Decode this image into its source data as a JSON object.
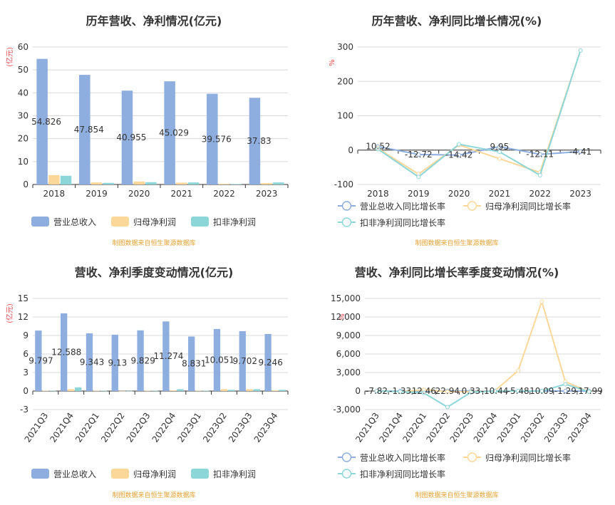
{
  "colors": {
    "revenue": "#8eaedf",
    "parent_profit": "#fbd79a",
    "deducted_profit": "#8dd6d8",
    "title": "#333333",
    "axis_text": "#333333",
    "unit_text": "#e84a4a",
    "source_text": "#e3a234",
    "grid": "#d9d9d9",
    "axis_line": "#333333"
  },
  "source_note": "制图数据来自恒生聚源数据库",
  "chart_data": [
    {
      "type": "bar",
      "title": "历年营收、净利情况(亿元)",
      "unit": "(亿元)",
      "categories": [
        "2018",
        "2019",
        "2020",
        "2021",
        "2022",
        "2023"
      ],
      "series": [
        {
          "name": "营业总收入",
          "values": [
            54.826,
            47.854,
            40.955,
            45.029,
            39.576,
            37.83
          ],
          "labels": [
            "54.826",
            "47.854",
            "40.955",
            "45.029",
            "39.576",
            "37.83"
          ]
        },
        {
          "name": "归母净利润",
          "values": [
            4.1,
            0.9,
            1.3,
            0.8,
            0.3,
            0.6
          ]
        },
        {
          "name": "扣非净利润",
          "values": [
            3.8,
            0.7,
            1.0,
            0.9,
            0.2,
            0.9
          ]
        }
      ],
      "yticks": [
        "60",
        "50",
        "40",
        "30",
        "20",
        "10",
        "0"
      ],
      "ylim": [
        0,
        60
      ],
      "legend": "bottom"
    },
    {
      "type": "line",
      "title": "历年营收、净利同比增长情况(%)",
      "unit": "%",
      "categories": [
        "2018",
        "2019",
        "2020",
        "2021",
        "2022",
        "2023"
      ],
      "series": [
        {
          "name": "营业总收入同比增长率",
          "values": [
            10.52,
            -12.72,
            -14.42,
            9.95,
            -12.11,
            -4.41
          ],
          "labels": [
            "10.52",
            "-12.72",
            "-14.42",
            "9.95",
            "-12.11",
            "-4.41"
          ]
        },
        {
          "name": "归母净利润同比增长率",
          "values": [
            5,
            -70,
            15,
            -25,
            -65,
            290
          ]
        },
        {
          "name": "扣非净利润同比增长率",
          "values": [
            3,
            -78,
            17,
            -5,
            -73,
            290
          ]
        }
      ],
      "yticks": [
        "300",
        "200",
        "100",
        "0",
        "-100"
      ],
      "ylim": [
        -100,
        300
      ],
      "legend": "bottom"
    },
    {
      "type": "bar",
      "title": "营收、净利季度变动情况(亿元)",
      "unit": "(亿元)",
      "categories": [
        "2021Q3",
        "2021Q4",
        "2022Q1",
        "2022Q2",
        "2022Q3",
        "2022Q4",
        "2023Q1",
        "2023Q2",
        "2023Q3",
        "2023Q4"
      ],
      "series": [
        {
          "name": "营业总收入",
          "values": [
            9.797,
            12.588,
            9.343,
            9.13,
            9.829,
            11.274,
            8.831,
            10.051,
            9.702,
            9.246
          ],
          "labels": [
            "9.797",
            "12.588",
            "9.343",
            "9.13",
            "9.829",
            "11.274",
            "8.831",
            "10.051",
            "9.702",
            "9.246"
          ]
        },
        {
          "name": "归母净利润",
          "values": [
            0.05,
            0.3,
            0.05,
            0.02,
            0.05,
            0.1,
            0.05,
            0.3,
            0.3,
            0.1
          ]
        },
        {
          "name": "扣非净利润",
          "values": [
            0.05,
            0.6,
            0.05,
            0.02,
            0.05,
            0.3,
            0.05,
            0.2,
            0.3,
            0.2
          ]
        }
      ],
      "yticks": [
        "15",
        "12",
        "9",
        "6",
        "3",
        "0",
        "-3"
      ],
      "ylim": [
        -3,
        15
      ],
      "legend": "bottom"
    },
    {
      "type": "line",
      "title": "营收、净利同比增长率季度变动情况(%)",
      "unit": "%",
      "categories": [
        "2021Q3",
        "2021Q4",
        "2022Q1",
        "2022Q2",
        "2022Q3",
        "2022Q4",
        "2023Q1",
        "2023Q2",
        "2023Q3",
        "2023Q4"
      ],
      "series": [
        {
          "name": "营业总收入同比增长率",
          "values": [
            -7.82,
            -1.33,
            12.46,
            22.94,
            0.33,
            -10.44,
            -5.48,
            10.09,
            -1.29,
            -17.99
          ],
          "labels": [
            "-7.82",
            "-1.33",
            "12.46",
            "22.94",
            "0.33",
            "-10.44",
            "-5.48",
            "10.09",
            "-1.29",
            "-17.99"
          ]
        },
        {
          "name": "归母净利润同比增长率",
          "values": [
            0,
            -100,
            200,
            -100,
            -100,
            0,
            3300,
            14500,
            1500,
            -100
          ]
        },
        {
          "name": "扣非净利润同比增长率",
          "values": [
            0,
            -100,
            -300,
            -2600,
            -200,
            0,
            0,
            0,
            1100,
            -100
          ]
        }
      ],
      "yticks": [
        "15,000",
        "12,000",
        "9,000",
        "6,000",
        "3,000",
        "0",
        "-3,000"
      ],
      "ylim": [
        -3000,
        15000
      ],
      "legend": "bottom"
    }
  ]
}
